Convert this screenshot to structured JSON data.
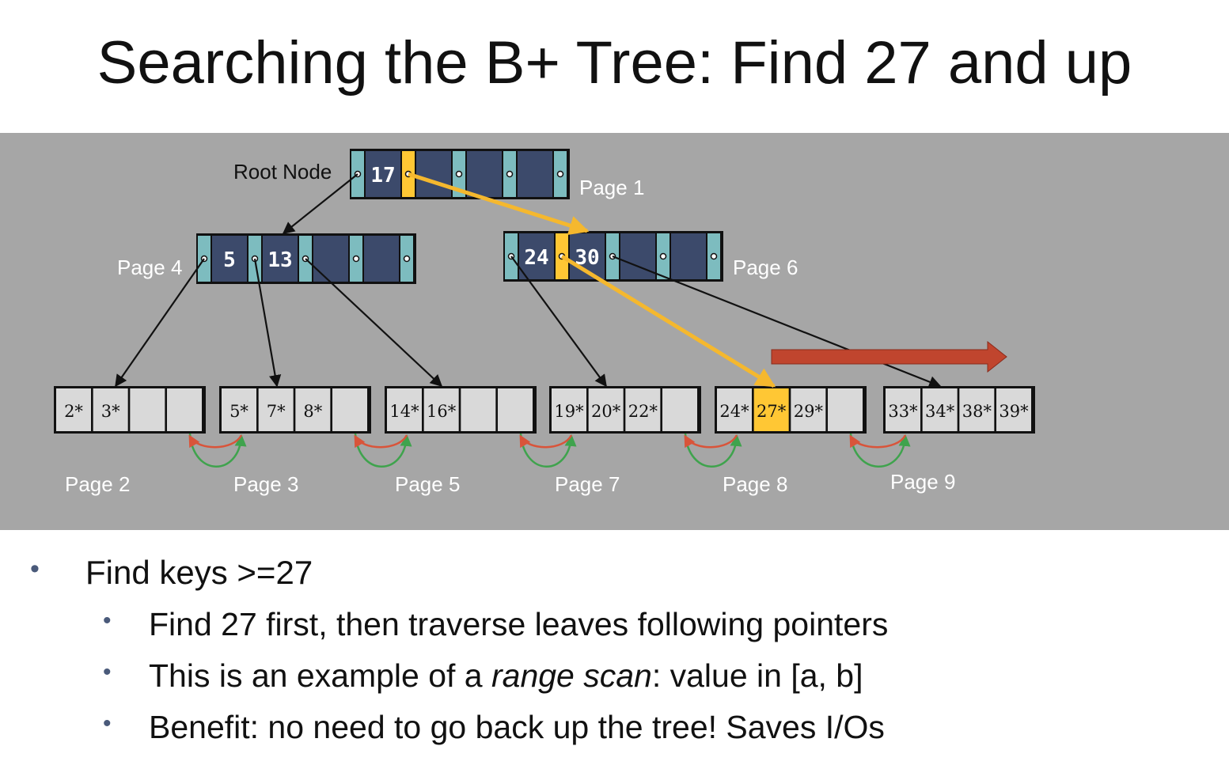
{
  "title": "Searching the B+ Tree: Find 27 and up",
  "diagram": {
    "root_label": "Root Node",
    "colors": {
      "background": "#a6a6a6",
      "inner_key": "#3c4a6b",
      "inner_ptr": "#7dbcbf",
      "highlight": "#ffc734",
      "leaf": "#d9d9d9",
      "search_path": "#f5b82e",
      "range_arrow": "#c0452e",
      "sibling_next": "#3fa34d",
      "sibling_prev": "#d9543a"
    },
    "root": {
      "page": "Page 1",
      "keys": [
        "17",
        "",
        "",
        ""
      ],
      "highlight_ptr": 1
    },
    "inner_nodes": [
      {
        "page": "Page 4",
        "keys": [
          "5",
          "13",
          "",
          ""
        ],
        "highlight_ptr": -1
      },
      {
        "page": "Page 6",
        "keys": [
          "24",
          "30",
          "",
          ""
        ],
        "highlight_ptr": 1
      }
    ],
    "leaves": [
      {
        "page": "Page 2",
        "keys": [
          "2*",
          "3*",
          "",
          ""
        ]
      },
      {
        "page": "Page 3",
        "keys": [
          "5*",
          "7*",
          "8*",
          ""
        ]
      },
      {
        "page": "Page 5",
        "keys": [
          "14*",
          "16*",
          "",
          ""
        ]
      },
      {
        "page": "Page 7",
        "keys": [
          "19*",
          "20*",
          "22*",
          ""
        ]
      },
      {
        "page": "Page 8",
        "keys": [
          "24*",
          "27*",
          "29*",
          ""
        ],
        "highlight_key": 1
      },
      {
        "page": "Page 9",
        "keys": [
          "33*",
          "34*",
          "38*",
          "39*"
        ]
      }
    ]
  },
  "bullets": {
    "main": "Find keys >=27",
    "sub1": "Find 27 first, then traverse leaves following pointers",
    "sub2_pre": "This is an example of a ",
    "sub2_ital": "range scan",
    "sub2_post": ": value in [a, b]",
    "sub3": "Benefit: no need to go back up the tree! Saves I/Os"
  }
}
